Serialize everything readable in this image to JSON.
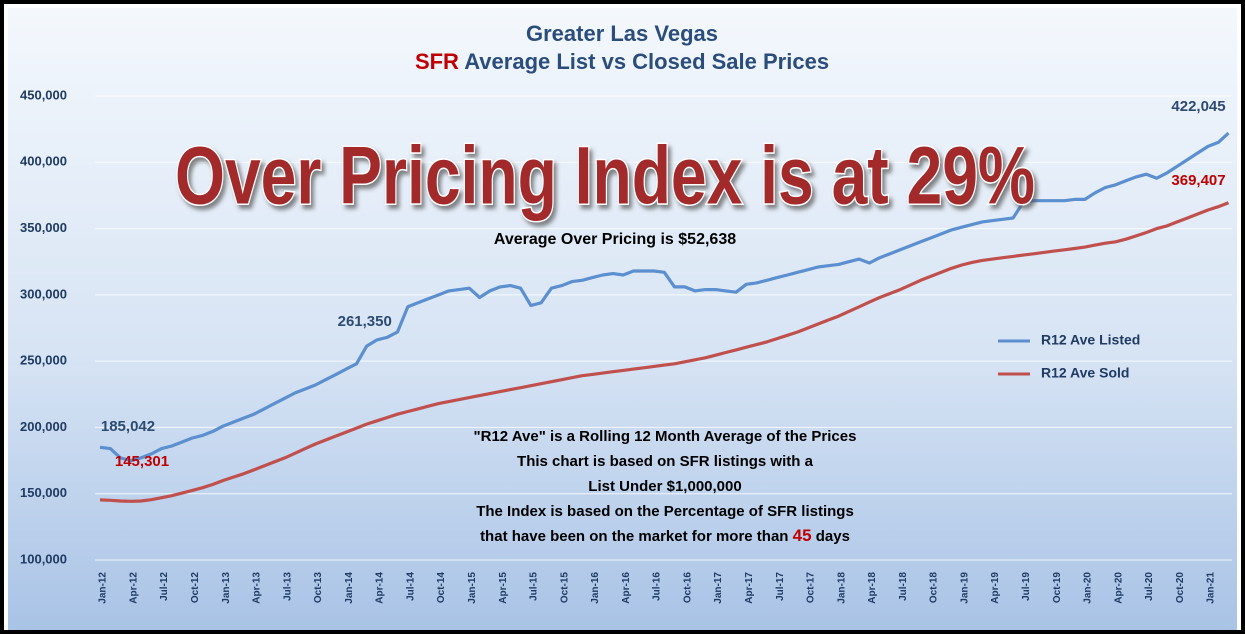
{
  "chart_data": {
    "type": "line",
    "title": "Greater Las Vegas",
    "subtitle": {
      "highlight": "SFR",
      "text": "Average List vs Closed Sale Prices"
    },
    "annotations": {
      "headline": "Over Pricing Index is at 29%",
      "average": "Average Over Pricing is $52,638",
      "notes": [
        "\"R12 Ave\" is a Rolling 12 Month Average of the Prices",
        "This chart is based on SFR listings with a",
        "List Under $1,000,000",
        "The Index is based on the Percentage of SFR listings"
      ],
      "last_note": {
        "before": "that have been on the market for more than",
        "highlight": "45",
        "after": "days"
      }
    },
    "categories": [
      "Jan-12",
      null,
      null,
      "Apr-12",
      null,
      null,
      "Jul-12",
      null,
      null,
      "Oct-12",
      null,
      null,
      "Jan-13",
      null,
      null,
      "Apr-13",
      null,
      null,
      "Jul-13",
      null,
      null,
      "Oct-13",
      null,
      null,
      "Jan-14",
      null,
      null,
      "Apr-14",
      null,
      null,
      "Jul-14",
      null,
      null,
      "Oct-14",
      null,
      null,
      "Jan-15",
      null,
      null,
      "Apr-15",
      null,
      null,
      "Jul-15",
      null,
      null,
      "Oct-15",
      null,
      null,
      "Jan-16",
      null,
      null,
      "Apr-16",
      null,
      null,
      "Jul-16",
      null,
      null,
      "Oct-16",
      null,
      null,
      "Jan-17",
      null,
      null,
      "Apr-17",
      null,
      null,
      "Jul-17",
      null,
      null,
      "Oct-17",
      null,
      null,
      "Jan-18",
      null,
      null,
      "Apr-18",
      null,
      null,
      "Jul-18",
      null,
      null,
      "Oct-18",
      null,
      null,
      "Jan-19",
      null,
      null,
      "Apr-19",
      null,
      null,
      "Jul-19",
      null,
      null,
      "Oct-19",
      null,
      null,
      "Jan-20",
      null,
      null,
      "Apr-20",
      null,
      null,
      "Jul-20",
      null,
      null,
      "Oct-20",
      null,
      null,
      "Jan-21",
      null,
      null
    ],
    "series": [
      {
        "name": "R12 Ave Listed",
        "color": "#5b8fd0",
        "values": [
          185042,
          184000,
          177000,
          175000,
          177000,
          180000,
          184000,
          186000,
          189000,
          192000,
          194000,
          197000,
          201000,
          204000,
          207000,
          210000,
          214000,
          218000,
          222000,
          226000,
          229000,
          232000,
          236000,
          240000,
          244000,
          248000,
          261350,
          266000,
          268000,
          272000,
          291000,
          294000,
          297000,
          300000,
          303000,
          304000,
          305000,
          298000,
          303000,
          306000,
          307000,
          305000,
          292000,
          294000,
          305000,
          307000,
          310000,
          311000,
          313000,
          315000,
          316000,
          315000,
          318000,
          318000,
          318000,
          317000,
          306000,
          306000,
          303000,
          304000,
          304000,
          303000,
          302000,
          308000,
          309000,
          311000,
          313000,
          315000,
          317000,
          319000,
          321000,
          322000,
          323000,
          325000,
          327000,
          324000,
          328000,
          331000,
          334000,
          337000,
          340000,
          343000,
          346000,
          349000,
          351000,
          353000,
          355000,
          356000,
          357000,
          358000,
          370000,
          371000,
          371000,
          371000,
          371000,
          372000,
          372000,
          377000,
          381000,
          383000,
          386000,
          389000,
          391000,
          388000,
          392000,
          397000,
          402000,
          407000,
          412000,
          415000,
          422045
        ],
        "value_labels": [
          "185,042",
          null,
          null,
          null,
          null,
          null,
          null,
          null,
          null,
          null,
          null,
          null,
          null,
          null,
          null,
          null,
          null,
          null,
          null,
          null,
          null,
          null,
          null,
          null,
          null,
          null,
          "261,350",
          null,
          null,
          null,
          null,
          null,
          null,
          null,
          null,
          null,
          null,
          null,
          null,
          null,
          null,
          null,
          null,
          null,
          null,
          null,
          null,
          null,
          null,
          null,
          null,
          null,
          null,
          null,
          null,
          null,
          null,
          null,
          null,
          null,
          null,
          null,
          null,
          null,
          null,
          null,
          null,
          null,
          null,
          null,
          null,
          null,
          null,
          null,
          null,
          null,
          null,
          null,
          null,
          null,
          null,
          null,
          null,
          null,
          null,
          null,
          null,
          null,
          null,
          null,
          null,
          null,
          null,
          null,
          null,
          null,
          null,
          null,
          null,
          null,
          null,
          null,
          null,
          null,
          null,
          null,
          null,
          null,
          null,
          null,
          "422,045"
        ]
      },
      {
        "name": "R12 Ave Sold",
        "color": "#c0504d",
        "values": [
          145301,
          145000,
          144500,
          144300,
          144500,
          145500,
          147000,
          148500,
          150500,
          152500,
          154500,
          157000,
          160000,
          162500,
          165000,
          168000,
          171000,
          174000,
          177000,
          180500,
          184000,
          187500,
          190500,
          193500,
          196500,
          199500,
          202500,
          205000,
          207500,
          210000,
          212000,
          214000,
          216000,
          218000,
          219500,
          221000,
          222500,
          224000,
          225500,
          227000,
          228500,
          230000,
          231500,
          233000,
          234500,
          236000,
          237500,
          239000,
          240000,
          241000,
          242000,
          243000,
          244000,
          245000,
          246000,
          247000,
          248000,
          249500,
          251000,
          252500,
          254500,
          256500,
          258500,
          260500,
          262500,
          264500,
          267000,
          269500,
          272000,
          275000,
          278000,
          281000,
          284000,
          287500,
          291000,
          294500,
          298000,
          301000,
          304000,
          307500,
          311000,
          314000,
          317000,
          320000,
          322500,
          324500,
          326000,
          327000,
          328000,
          329000,
          330000,
          331000,
          332000,
          333000,
          334000,
          335000,
          336000,
          337500,
          339000,
          340000,
          342000,
          344500,
          347000,
          350000,
          352000,
          355000,
          358000,
          361000,
          364000,
          366500,
          369407
        ],
        "value_labels": [
          "145,301",
          null,
          null,
          null,
          null,
          null,
          null,
          null,
          null,
          null,
          null,
          null,
          null,
          null,
          null,
          null,
          null,
          null,
          null,
          null,
          null,
          null,
          null,
          null,
          null,
          null,
          null,
          null,
          null,
          null,
          null,
          null,
          null,
          null,
          null,
          null,
          null,
          null,
          null,
          null,
          null,
          null,
          null,
          null,
          null,
          null,
          null,
          null,
          null,
          null,
          null,
          null,
          null,
          null,
          null,
          null,
          null,
          null,
          null,
          null,
          null,
          null,
          null,
          null,
          null,
          null,
          null,
          null,
          null,
          null,
          null,
          null,
          null,
          null,
          null,
          null,
          null,
          null,
          null,
          null,
          null,
          null,
          null,
          null,
          null,
          null,
          null,
          null,
          null,
          null,
          null,
          null,
          null,
          null,
          null,
          null,
          null,
          null,
          null,
          null,
          null,
          null,
          null,
          null,
          null,
          null,
          null,
          null,
          null,
          null,
          "369,407"
        ]
      }
    ],
    "ylim": [
      100000,
      450000
    ],
    "yticks": [
      {
        "value": 100000,
        "label": "100,000"
      },
      {
        "value": 150000,
        "label": "150,000"
      },
      {
        "value": 200000,
        "label": "200,000"
      },
      {
        "value": 250000,
        "label": "250,000"
      },
      {
        "value": 300000,
        "label": "300,000"
      },
      {
        "value": 350000,
        "label": "350,000"
      },
      {
        "value": 400000,
        "label": "400,000"
      },
      {
        "value": 450000,
        "label": "450,000"
      }
    ],
    "grid": true,
    "legend": "right",
    "highlight_color": "#c00000"
  }
}
